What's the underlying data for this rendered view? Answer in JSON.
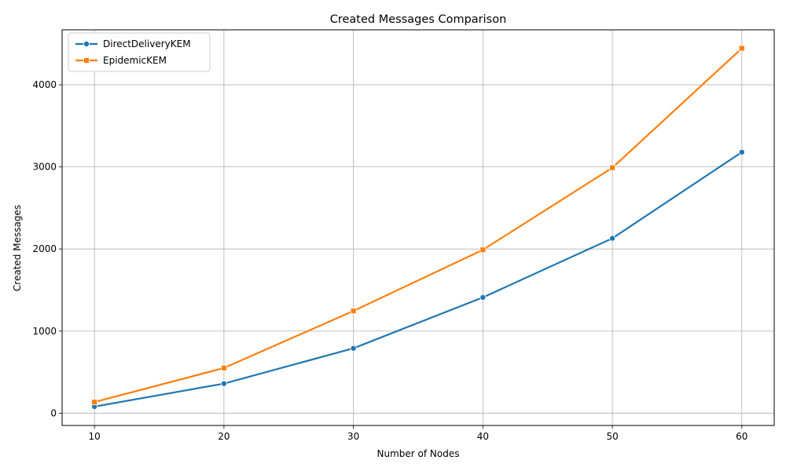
{
  "chart_data": {
    "type": "line",
    "title": "Created Messages Comparison",
    "xlabel": "Number of Nodes",
    "ylabel": "Created Messages",
    "x": [
      10,
      20,
      30,
      40,
      50,
      60
    ],
    "x_ticks": [
      10,
      20,
      30,
      40,
      50,
      60
    ],
    "y_ticks": [
      0,
      1000,
      2000,
      3000,
      4000
    ],
    "xlim": [
      7.5,
      62.5
    ],
    "ylim": [
      -150,
      4670
    ],
    "grid": true,
    "legend_position": "top-left",
    "series": [
      {
        "name": "DirectDeliveryKEM",
        "color": "#1f77b4",
        "marker": "circle",
        "values": [
          80,
          360,
          790,
          1410,
          2130,
          3180
        ]
      },
      {
        "name": "EpidemicKEM",
        "color": "#ff7f0e",
        "marker": "square",
        "values": [
          135,
          550,
          1245,
          1990,
          2990,
          4445
        ]
      }
    ]
  }
}
